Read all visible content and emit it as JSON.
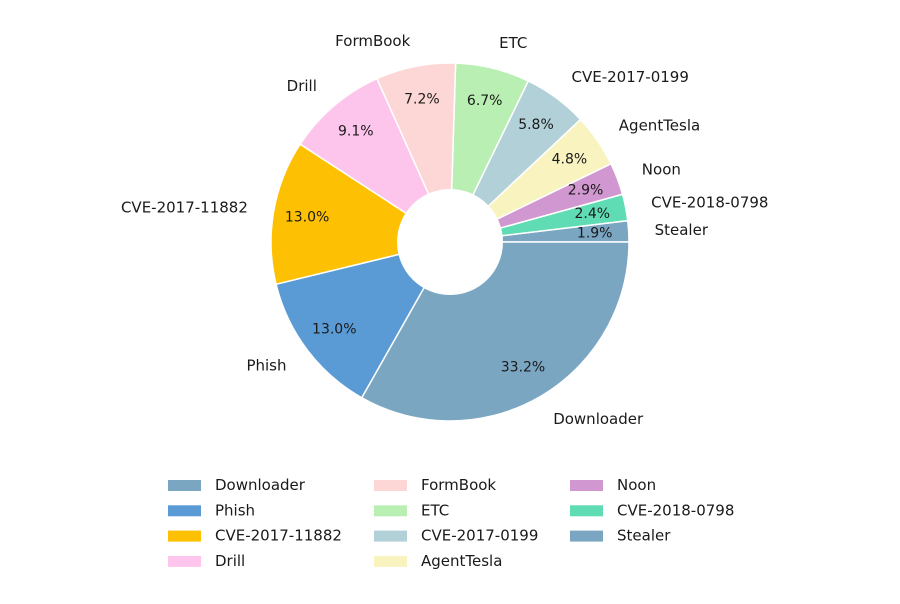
{
  "chart_data": {
    "type": "pie",
    "donut": true,
    "start_angle_deg": 0,
    "direction": "counterclockwise",
    "title": "",
    "legend": {
      "placement": "bottom-center",
      "columns": 3
    },
    "slices": [
      {
        "label": "Stealer",
        "value": 1.9,
        "display": "1.9%",
        "color": "#7aa6c2"
      },
      {
        "label": "CVE-2018-0798",
        "value": 2.4,
        "display": "2.4%",
        "color": "#5fdcb3"
      },
      {
        "label": "Noon",
        "value": 2.9,
        "display": "2.9%",
        "color": "#d197d0"
      },
      {
        "label": "AgentTesla",
        "value": 4.8,
        "display": "4.8%",
        "color": "#f9f3c0"
      },
      {
        "label": "CVE-2017-0199",
        "value": 5.8,
        "display": "5.8%",
        "color": "#b1d0d8"
      },
      {
        "label": "ETC",
        "value": 6.7,
        "display": "6.7%",
        "color": "#baefb3"
      },
      {
        "label": "FormBook",
        "value": 7.2,
        "display": "7.2%",
        "color": "#fdd7d6"
      },
      {
        "label": "Drill",
        "value": 9.1,
        "display": "9.1%",
        "color": "#fec5ec"
      },
      {
        "label": "CVE-2017-11882",
        "value": 13.0,
        "display": "13.0%",
        "color": "#fec003"
      },
      {
        "label": "Phish",
        "value": 13.0,
        "display": "13.0%",
        "color": "#5b9bd5"
      },
      {
        "label": "Downloader",
        "value": 33.2,
        "display": "33.2%",
        "color": "#7aa6c2"
      }
    ],
    "legend_entries": [
      {
        "label": "Downloader",
        "color": "#7aa6c2"
      },
      {
        "label": "Phish",
        "color": "#5b9bd5"
      },
      {
        "label": "CVE-2017-11882",
        "color": "#fec003"
      },
      {
        "label": "Drill",
        "color": "#fec5ec"
      },
      {
        "label": "FormBook",
        "color": "#fdd7d6"
      },
      {
        "label": "ETC",
        "color": "#baefb3"
      },
      {
        "label": "CVE-2017-0199",
        "color": "#b1d0d8"
      },
      {
        "label": "AgentTesla",
        "color": "#f9f3c0"
      },
      {
        "label": "Noon",
        "color": "#d197d0"
      },
      {
        "label": "CVE-2018-0798",
        "color": "#5fdcb3"
      },
      {
        "label": "Stealer",
        "color": "#7aa6c2"
      }
    ]
  }
}
